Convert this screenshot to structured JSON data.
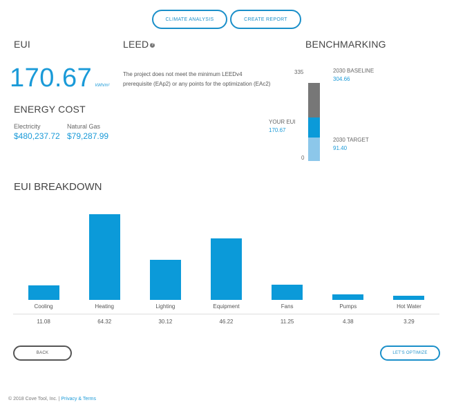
{
  "toolbar": {
    "climate_analysis_label": "CLIMATE ANALYSIS",
    "create_report_label": "CREATE REPORT"
  },
  "eui": {
    "heading": "EUI",
    "value": "170.67",
    "unit": "kWh/m²"
  },
  "energy_cost": {
    "heading": "ENERGY COST",
    "electricity_label": "Electricity",
    "electricity_value": "$480,237.72",
    "gas_label": "Natural Gas",
    "gas_value": "$79,287.99"
  },
  "leed": {
    "heading": "LEED",
    "info_icon": "info-icon",
    "message": "The project does not meet the minimum LEEDv4 prerequisite (EAp2) or any points for the optimization (EAc2)"
  },
  "benchmarking": {
    "heading": "BENCHMARKING",
    "axis_max": "335",
    "axis_min": "0",
    "scale_max": 335,
    "baseline_label": "2030 BASELINE",
    "baseline_value": "304.66",
    "baseline": 304.66,
    "your_eui_label": "YOUR EUI",
    "your_eui_value": "170.67",
    "your_eui": 170.67,
    "target_label": "2030 TARGET",
    "target_value": "91.40",
    "target": 91.4,
    "colors": {
      "baseline": "#777777",
      "your_eui": "#0b9ad9",
      "target": "#8cc7ea"
    }
  },
  "breakdown": {
    "heading": "EUI BREAKDOWN"
  },
  "chart_data": {
    "type": "bar",
    "categories": [
      "Cooling",
      "Heating",
      "Lighting",
      "Equipment",
      "Fans",
      "Pumps",
      "Hot Water"
    ],
    "values": [
      11.08,
      64.32,
      30.12,
      46.22,
      11.25,
      4.38,
      3.29
    ],
    "value_labels": [
      "11.08",
      "64.32",
      "30.12",
      "46.22",
      "11.25",
      "4.38",
      "3.29"
    ],
    "title": "EUI BREAKDOWN",
    "xlabel": "",
    "ylabel": "",
    "ylim": [
      0,
      64.32
    ],
    "grid": false,
    "color": "#0b9ad9"
  },
  "footer": {
    "back_label": "BACK",
    "optimize_label": "LET'S OPTIMIZE",
    "copyright": "© 2018 Cove Tool, Inc. |",
    "privacy_terms": "Privacy & Terms"
  }
}
